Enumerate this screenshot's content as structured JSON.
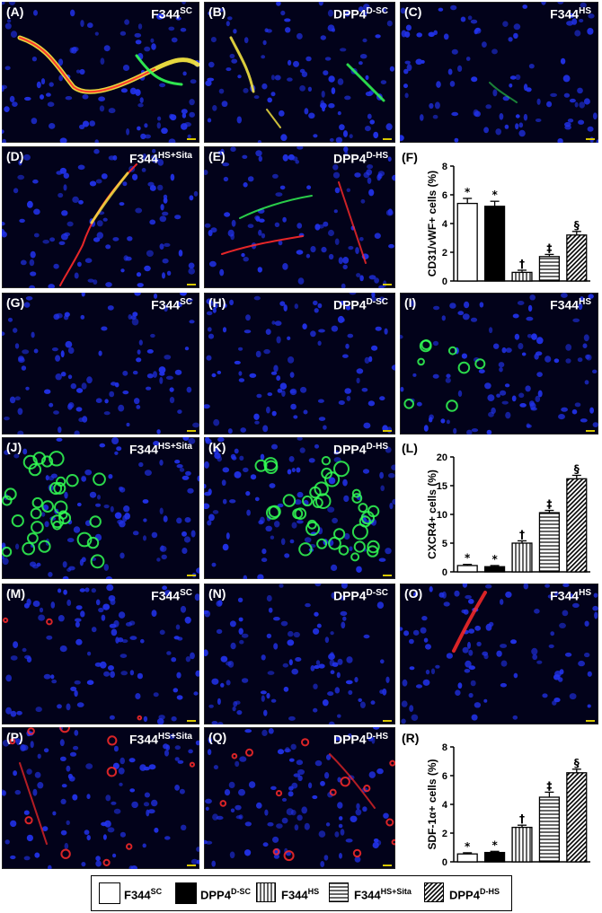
{
  "panels": [
    {
      "label": "(A)",
      "title": "F344",
      "sup": "SC",
      "marker": "vessel-bright"
    },
    {
      "label": "(B)",
      "title": "DPP4",
      "sup": "D-SC",
      "marker": "vessel-mid"
    },
    {
      "label": "(C)",
      "title": "F344",
      "sup": "HS",
      "marker": "vessel-faint"
    },
    {
      "label": "(D)",
      "title": "F344",
      "sup": "HS+Sita",
      "marker": "vessel-line"
    },
    {
      "label": "(E)",
      "title": "DPP4",
      "sup": "D-HS",
      "marker": "vessel-mixed"
    },
    {
      "label": "(G)",
      "title": "F344",
      "sup": "SC",
      "marker": "none"
    },
    {
      "label": "(H)",
      "title": "DPP4",
      "sup": "D-SC",
      "marker": "none"
    },
    {
      "label": "(I)",
      "title": "F344",
      "sup": "HS",
      "marker": "green-few"
    },
    {
      "label": "(J)",
      "title": "F344",
      "sup": "HS+Sita",
      "marker": "green-many"
    },
    {
      "label": "(K)",
      "title": "DPP4",
      "sup": "D-HS",
      "marker": "green-cluster"
    },
    {
      "label": "(M)",
      "title": "F344",
      "sup": "SC",
      "marker": "red-few"
    },
    {
      "label": "(N)",
      "title": "DPP4",
      "sup": "D-SC",
      "marker": "none"
    },
    {
      "label": "(O)",
      "title": "F344",
      "sup": "HS",
      "marker": "red-line"
    },
    {
      "label": "(P)",
      "title": "F344",
      "sup": "HS+Sita",
      "marker": "red-scatter"
    },
    {
      "label": "(Q)",
      "title": "DPP4",
      "sup": "D-HS",
      "marker": "red-scatter2"
    }
  ],
  "colors": {
    "nuclei": "#2233ee",
    "green": "#33ff55",
    "red": "#ff2a2a",
    "yellow": "#ffee44",
    "background": "#02021a"
  },
  "chart_data": [
    {
      "label": "(F)",
      "type": "bar",
      "categories": [
        "F344SC",
        "DPP4D-SC",
        "F344HS",
        "F344HS+Sita",
        "DPP4D-HS"
      ],
      "values": [
        5.4,
        5.2,
        0.6,
        1.7,
        3.2
      ],
      "errors": [
        0.35,
        0.35,
        0.15,
        0.15,
        0.25
      ],
      "annotations": [
        "*",
        "*",
        "†",
        "‡",
        "§"
      ],
      "ylabel": "CD31/vWF+ cells (%)",
      "yticks": [
        "0",
        "2",
        "4",
        "6",
        "8"
      ],
      "ylim": [
        0,
        8
      ]
    },
    {
      "label": "(L)",
      "type": "bar",
      "categories": [
        "F344SC",
        "DPP4D-SC",
        "F344HS",
        "F344HS+Sita",
        "DPP4D-HS"
      ],
      "values": [
        1.1,
        0.9,
        5.0,
        10.3,
        16.2
      ],
      "errors": [
        0.2,
        0.2,
        0.4,
        0.4,
        0.6
      ],
      "annotations": [
        "*",
        "*",
        "†",
        "‡",
        "§"
      ],
      "ylabel": "CXCR4+ cells (%)",
      "yticks": [
        "0",
        "5",
        "10",
        "15",
        "20"
      ],
      "ylim": [
        0,
        20
      ]
    },
    {
      "label": "(R)",
      "type": "bar",
      "categories": [
        "F344SC",
        "DPP4D-SC",
        "F344HS",
        "F344HS+Sita",
        "DPP4D-HS"
      ],
      "values": [
        0.55,
        0.65,
        2.4,
        4.5,
        6.2
      ],
      "errors": [
        0.08,
        0.08,
        0.15,
        0.35,
        0.25
      ],
      "annotations": [
        "*",
        "*",
        "†",
        "‡",
        "§"
      ],
      "ylabel": "SDF-1α+ cells (%)",
      "yticks": [
        "0",
        "2",
        "4",
        "6",
        "8"
      ],
      "ylim": [
        0,
        8
      ]
    }
  ],
  "legend": [
    {
      "name": "F344",
      "sup": "SC",
      "pattern": "white"
    },
    {
      "name": "DPP4",
      "sup": "D-SC",
      "pattern": "black"
    },
    {
      "name": "F344",
      "sup": "HS",
      "pattern": "vertical"
    },
    {
      "name": "F344",
      "sup": "HS+Sita",
      "pattern": "horizontal"
    },
    {
      "name": "DPP4",
      "sup": "D-HS",
      "pattern": "diagonal"
    }
  ]
}
